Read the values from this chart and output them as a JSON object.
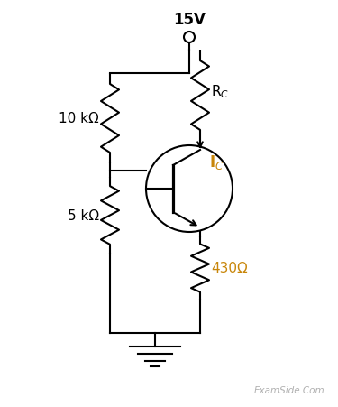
{
  "bg_color": "#ffffff",
  "line_color": "#000000",
  "text_color": "#000000",
  "label_color_orange": "#c8860a",
  "title": "15V",
  "rc_label": "R$_C$",
  "ic_label": "I$_C$",
  "r1_label": "10 kΩ",
  "r2_label": "5 kΩ",
  "re_label": "430Ω",
  "watermark": "ExamSide.Com",
  "figsize": [
    3.75,
    4.52
  ],
  "dpi": 100
}
